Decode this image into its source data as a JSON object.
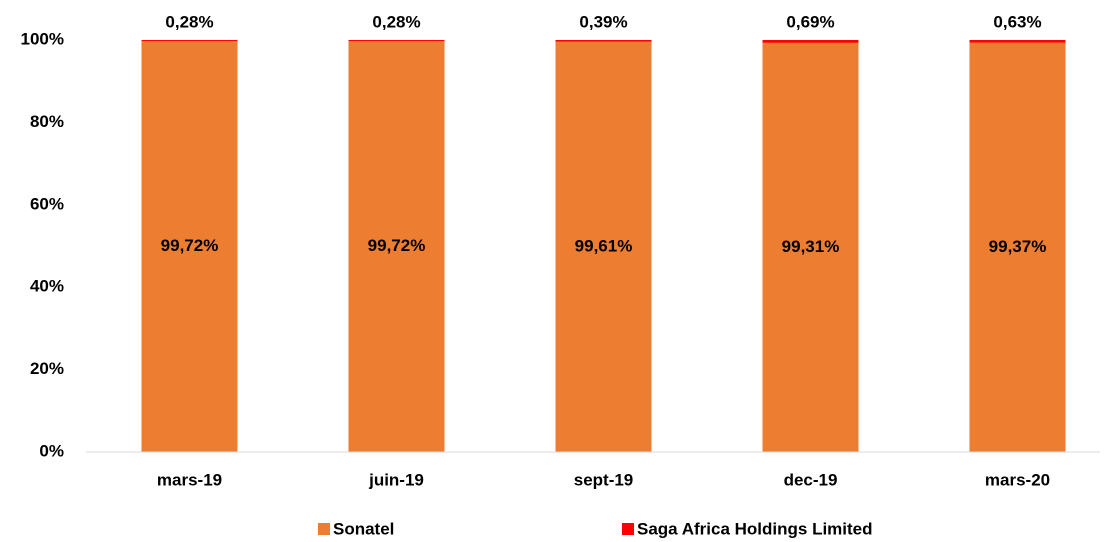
{
  "chart_data": {
    "type": "stacked_bar",
    "categories": [
      "mars-19",
      "juin-19",
      "sept-19",
      "dec-19",
      "mars-20"
    ],
    "series": [
      {
        "name": "Sonatel",
        "color": "#ed7d31",
        "values": [
          99.72,
          99.72,
          99.61,
          99.31,
          99.37
        ],
        "value_labels": [
          "99,72%",
          "99,72%",
          "99,61%",
          "99,31%",
          "99,37%"
        ]
      },
      {
        "name": "Saga Africa Holdings Limited",
        "color": "#ff0000",
        "values": [
          0.28,
          0.28,
          0.39,
          0.69,
          0.63
        ],
        "value_labels": [
          "0,28%",
          "0,28%",
          "0,39%",
          "0,69%",
          "0,63%"
        ]
      }
    ],
    "ylim": [
      0,
      100
    ],
    "yticks": [
      {
        "value": 0,
        "label": "0%"
      },
      {
        "value": 20,
        "label": "20%"
      },
      {
        "value": 40,
        "label": "40%"
      },
      {
        "value": 60,
        "label": "60%"
      },
      {
        "value": 80,
        "label": "80%"
      },
      {
        "value": 100,
        "label": "100%"
      }
    ],
    "grid": false,
    "legend": "bottom"
  }
}
